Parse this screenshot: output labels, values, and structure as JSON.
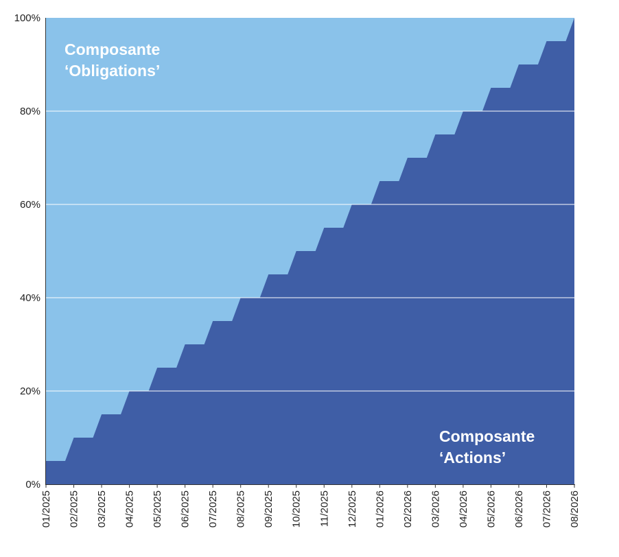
{
  "chart_data": {
    "type": "area",
    "title": "",
    "xlabel": "",
    "ylabel": "",
    "ylim": [
      0,
      100
    ],
    "grid": "horizontal",
    "y_ticks": [
      "0%",
      "20%",
      "40%",
      "60%",
      "80%",
      "100%"
    ],
    "y_tick_values": [
      0,
      20,
      40,
      60,
      80,
      100
    ],
    "x": [
      "01/2025",
      "02/2025",
      "03/2025",
      "04/2025",
      "05/2025",
      "06/2025",
      "07/2025",
      "08/2025",
      "09/2025",
      "10/2025",
      "11/2025",
      "12/2025",
      "01/2026",
      "02/2026",
      "03/2026",
      "04/2026",
      "05/2026",
      "06/2026",
      "07/2026",
      "08/2026"
    ],
    "series": [
      {
        "name": "Composante ‘Actions’",
        "label_lines": [
          "Composante",
          "‘Actions’"
        ],
        "color": "#3f5ea6",
        "values": [
          5,
          10,
          15,
          20,
          25,
          30,
          35,
          40,
          45,
          50,
          55,
          60,
          65,
          70,
          75,
          80,
          85,
          90,
          95,
          100
        ]
      },
      {
        "name": "Composante ‘Obligations’",
        "label_lines": [
          "Composante",
          "‘Obligations’"
        ],
        "color": "#8ac2ea",
        "values": [
          95,
          90,
          85,
          80,
          75,
          70,
          65,
          60,
          55,
          50,
          45,
          40,
          35,
          30,
          25,
          20,
          15,
          10,
          5,
          0
        ]
      }
    ]
  }
}
